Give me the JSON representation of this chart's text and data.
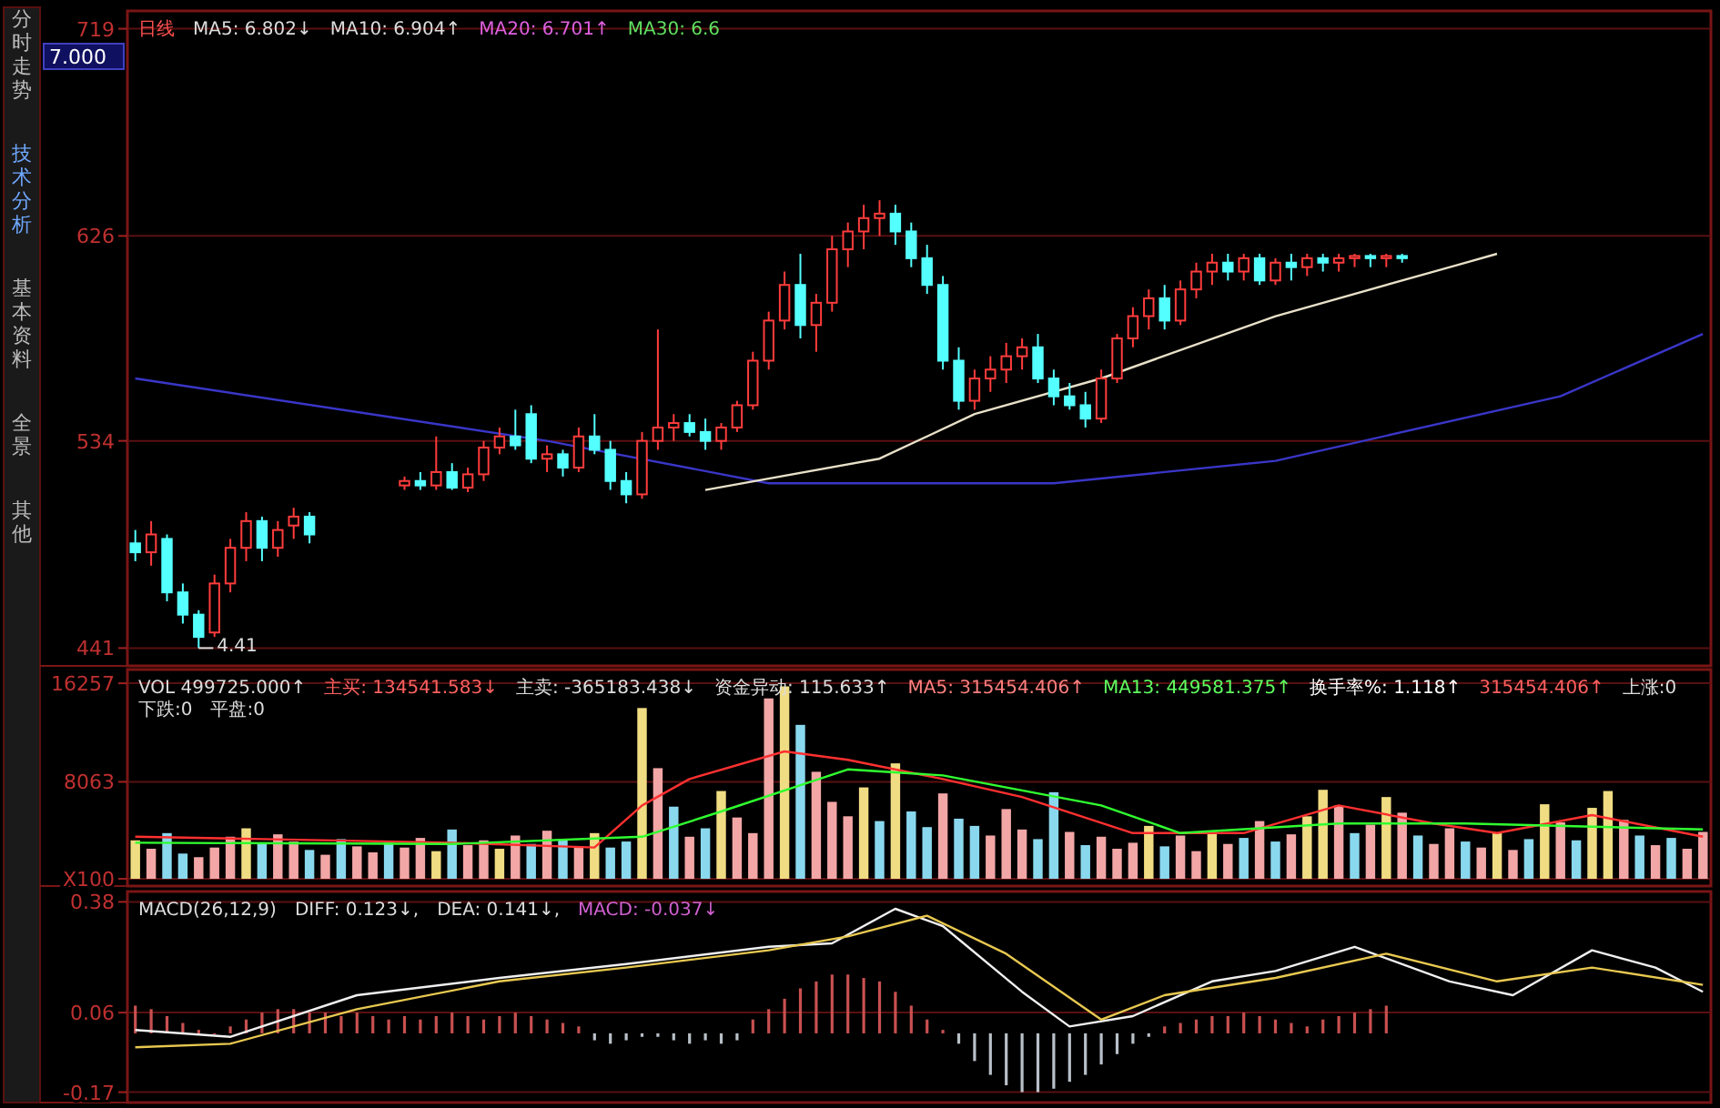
{
  "chart_data": [
    {
      "type": "candlestick",
      "title": "日线",
      "annotations": [
        "分时走势",
        "技术分析",
        "基本资料",
        "全景",
        "其他",
        "7.000",
        "MA5: 6.802↓",
        "MA10: 6.904↑",
        "MA20: 6.701↑",
        "MA30: 6.6",
        "4.41"
      ],
      "categories": [
        null,
        null,
        null,
        null,
        null,
        null,
        null,
        null,
        null,
        null,
        null,
        null,
        null,
        null,
        null,
        null,
        null,
        null,
        null,
        null,
        null,
        null,
        null,
        null,
        null,
        null,
        null,
        null,
        null,
        null,
        null,
        null,
        null,
        null,
        null,
        null,
        null,
        null,
        null,
        null,
        null,
        null,
        null,
        null,
        null,
        null,
        null,
        null,
        null,
        null,
        null,
        null,
        null,
        null,
        null,
        null,
        null,
        null,
        null,
        null,
        null,
        null,
        null,
        null,
        null,
        null,
        null,
        null,
        null,
        null,
        null,
        null,
        null,
        null,
        null,
        null,
        null,
        null,
        null,
        null,
        null,
        null,
        null,
        null,
        null,
        null,
        null,
        null,
        null,
        null,
        null,
        null,
        null,
        null,
        null,
        null,
        null,
        null,
        null,
        null
      ],
      "colors": [
        "#54ffff",
        "#ff3c3c",
        "#54ffff",
        "#54ffff",
        "#54ffff",
        "#ff3c3c",
        "#ff3c3c",
        "#ff3c3c",
        "#54ffff",
        "#ff3c3c",
        "#ff3c3c",
        "#54ffff",
        null,
        null,
        null,
        null,
        null,
        "#ff3c3c",
        "#54ffff",
        "#ff3c3c",
        "#54ffff",
        "#ff3c3c",
        "#ff3c3c",
        "#ff3c3c",
        "#54ffff",
        "#54ffff",
        "#ff3c3c",
        "#54ffff",
        "#ff3c3c",
        "#54ffff",
        "#54ffff",
        "#54ffff",
        "#ff3c3c",
        "#ff3c3c",
        "#ff3c3c",
        "#54ffff",
        "#54ffff",
        "#ff3c3c",
        "#ff3c3c",
        "#ff3c3c",
        "#ff3c3c",
        "#ff3c3c",
        "#54ffff",
        "#ff3c3c",
        "#ff3c3c",
        "#ff3c3c",
        "#ff3c3c",
        "#ff3c3c",
        "#54ffff",
        "#54ffff",
        "#54ffff",
        "#54ffff",
        "#54ffff",
        "#ff3c3c",
        "#ff3c3c",
        "#ff3c3c",
        "#ff3c3c",
        "#54ffff",
        "#54ffff",
        "#54ffff",
        "#54ffff",
        "#ff3c3c",
        "#ff3c3c",
        "#ff3c3c",
        "#ff3c3c",
        "#54ffff",
        "#ff3c3c",
        "#ff3c3c",
        "#ff3c3c",
        "#54ffff",
        "#ff3c3c",
        "#54ffff",
        "#ff3c3c",
        "#54ffff",
        "#ff3c3c",
        "#54ffff",
        "#ff3c3c",
        "#ff3c3c",
        "#54ffff",
        "#ff3c3c",
        "#54ffff",
        null,
        null,
        null,
        null,
        null,
        null,
        null,
        null,
        null,
        null,
        null,
        null,
        null,
        null,
        null,
        null,
        null,
        null,
        null
      ],
      "ohlc": [
        [
          488,
          494,
          480,
          484
        ],
        [
          484,
          498,
          478,
          492
        ],
        [
          490,
          492,
          462,
          466
        ],
        [
          466,
          470,
          452,
          456
        ],
        [
          456,
          458,
          441,
          446
        ],
        [
          448,
          474,
          446,
          470
        ],
        [
          470,
          490,
          466,
          486
        ],
        [
          486,
          502,
          480,
          498
        ],
        [
          498,
          500,
          480,
          486
        ],
        [
          486,
          498,
          482,
          494
        ],
        [
          496,
          504,
          490,
          500
        ],
        [
          500,
          502,
          488,
          492
        ],
        null,
        null,
        null,
        null,
        null,
        [
          514,
          518,
          512,
          516
        ],
        [
          516,
          520,
          512,
          514
        ],
        [
          514,
          536,
          512,
          520
        ],
        [
          520,
          524,
          512,
          513
        ],
        [
          513,
          522,
          511,
          519
        ],
        [
          519,
          534,
          516,
          531
        ],
        [
          531,
          540,
          528,
          536
        ],
        [
          536,
          548,
          530,
          532
        ],
        [
          546,
          550,
          524,
          526
        ],
        [
          526,
          532,
          520,
          528
        ],
        [
          528,
          530,
          518,
          522
        ],
        [
          522,
          540,
          520,
          536
        ],
        [
          536,
          546,
          528,
          530
        ],
        [
          530,
          534,
          512,
          516
        ],
        [
          516,
          520,
          506,
          510
        ],
        [
          510,
          538,
          508,
          534
        ],
        [
          534,
          584,
          530,
          540
        ],
        [
          540,
          546,
          534,
          542
        ],
        [
          542,
          546,
          536,
          538
        ],
        [
          538,
          544,
          530,
          534
        ],
        [
          534,
          542,
          530,
          540
        ],
        [
          540,
          552,
          538,
          550
        ],
        [
          550,
          574,
          548,
          570
        ],
        [
          570,
          592,
          566,
          588
        ],
        [
          588,
          610,
          584,
          604
        ],
        [
          604,
          618,
          580,
          586
        ],
        [
          586,
          600,
          574,
          596
        ],
        [
          596,
          626,
          592,
          620
        ],
        [
          620,
          632,
          612,
          628
        ],
        [
          628,
          640,
          620,
          634
        ],
        [
          634,
          642,
          626,
          636
        ],
        [
          636,
          640,
          622,
          628
        ],
        [
          628,
          632,
          612,
          616
        ],
        [
          616,
          622,
          600,
          604
        ],
        [
          604,
          608,
          566,
          570
        ],
        [
          570,
          576,
          548,
          552
        ],
        [
          552,
          566,
          548,
          562
        ],
        [
          562,
          572,
          556,
          566
        ],
        [
          566,
          578,
          560,
          572
        ],
        [
          572,
          580,
          566,
          576
        ],
        [
          576,
          582,
          560,
          562
        ],
        [
          562,
          566,
          550,
          554
        ],
        [
          554,
          560,
          548,
          550
        ],
        [
          550,
          556,
          540,
          544
        ],
        [
          544,
          566,
          542,
          562
        ],
        [
          562,
          582,
          560,
          580
        ],
        [
          580,
          594,
          576,
          590
        ],
        [
          590,
          602,
          584,
          598
        ],
        [
          598,
          604,
          584,
          588
        ],
        [
          588,
          606,
          586,
          602
        ],
        [
          602,
          614,
          598,
          610
        ],
        [
          610,
          618,
          604,
          614
        ],
        [
          614,
          618,
          606,
          610
        ],
        [
          610,
          618,
          606,
          616
        ],
        [
          616,
          618,
          604,
          606
        ],
        [
          606,
          616,
          604,
          614
        ],
        [
          614,
          618,
          606,
          612
        ],
        [
          612,
          618,
          608,
          616
        ],
        [
          616,
          618,
          610,
          614
        ],
        [
          614,
          618,
          610,
          616
        ],
        [
          616,
          618,
          612,
          617
        ],
        [
          617,
          618,
          612,
          616
        ],
        [
          616,
          618,
          612,
          617
        ],
        [
          617,
          618,
          614,
          616
        ],
        null,
        null,
        null,
        null,
        null,
        null,
        null,
        null,
        null,
        null,
        null,
        null,
        null,
        null,
        null,
        null,
        null,
        null,
        null
      ],
      "series": [
        {
          "type": "line",
          "color": "#3a36c8",
          "values": [
            562,
            null,
            null,
            null,
            null,
            null,
            null,
            null,
            null,
            null,
            null,
            null,
            null,
            null,
            null,
            null,
            null,
            null,
            null,
            null,
            null,
            null,
            null,
            null,
            null,
            null,
            534,
            null,
            null,
            null,
            null,
            null,
            null,
            null,
            null,
            null,
            null,
            null,
            null,
            null,
            515,
            null,
            null,
            null,
            null,
            null,
            null,
            null,
            null,
            null,
            null,
            null,
            null,
            null,
            null,
            null,
            null,
            null,
            515,
            null,
            null,
            null,
            null,
            null,
            null,
            null,
            null,
            null,
            null,
            null,
            null,
            null,
            525,
            null,
            null,
            null,
            null,
            null,
            null,
            null,
            null,
            null,
            null,
            null,
            null,
            null,
            null,
            null,
            null,
            null,
            554,
            null,
            null,
            null,
            null,
            null,
            null,
            null,
            null,
            582
          ]
        },
        {
          "type": "line",
          "color": "#e8e0c8",
          "values": [
            null,
            null,
            null,
            null,
            null,
            null,
            null,
            null,
            null,
            null,
            null,
            null,
            null,
            null,
            null,
            null,
            null,
            null,
            null,
            null,
            null,
            null,
            null,
            null,
            null,
            null,
            null,
            null,
            null,
            null,
            null,
            null,
            null,
            null,
            null,
            null,
            512,
            null,
            null,
            null,
            null,
            null,
            null,
            null,
            null,
            null,
            null,
            526,
            null,
            null,
            null,
            null,
            null,
            546,
            null,
            null,
            null,
            null,
            null,
            null,
            null,
            562,
            null,
            null,
            null,
            null,
            null,
            null,
            null,
            null,
            null,
            null,
            590,
            null,
            null,
            null,
            null,
            null,
            null,
            null,
            null,
            null,
            null,
            null,
            614,
            null,
            618,
            null,
            null,
            null,
            null,
            null,
            null,
            null,
            null,
            null,
            null,
            null,
            null,
            null
          ]
        }
      ],
      "ylim": [
        433,
        727
      ],
      "yticks": [
        441,
        534,
        626,
        719
      ],
      "grid": "y"
    },
    {
      "type": "bar",
      "annotations": [
        "VOL 499725.000↑",
        "主买: 134541.583↓",
        "主卖: -365183.438↓",
        "资金异动: 115.633↑",
        "MA5: 315454.406↑",
        "MA13: 449581.375↑",
        "换手率%: 1.118↑",
        "315454.406↑",
        "上涨:0",
        "下跌:0",
        "平盘:0"
      ],
      "categories": [
        null,
        null,
        null,
        null,
        null,
        null,
        null,
        null,
        null,
        null,
        null,
        null,
        null,
        null,
        null,
        null,
        null,
        null,
        null,
        null,
        null,
        null,
        null,
        null,
        null,
        null,
        null,
        null,
        null,
        null,
        null,
        null,
        null,
        null,
        null,
        null,
        null,
        null,
        null,
        null,
        null,
        null,
        null,
        null,
        null,
        null,
        null,
        null,
        null,
        null,
        null,
        null,
        null,
        null,
        null,
        null,
        null,
        null,
        null,
        null,
        null,
        null,
        null,
        null,
        null,
        null,
        null,
        null,
        null,
        null,
        null,
        null,
        null,
        null,
        null,
        null,
        null,
        null,
        null,
        null,
        null,
        null,
        null,
        null,
        null,
        null,
        null,
        null,
        null,
        null,
        null,
        null,
        null,
        null,
        null,
        null,
        null,
        null,
        null,
        null
      ],
      "series": [
        {
          "type": "bar",
          "values": [
            3200,
            2500,
            3800,
            2100,
            1800,
            2600,
            3500,
            4200,
            2900,
            3700,
            3100,
            2400,
            2000,
            3300,
            2700,
            2200,
            3000,
            2600,
            3400,
            2300,
            4100,
            2800,
            3200,
            2500,
            3600,
            2900,
            4000,
            3300,
            2700,
            3800,
            2600,
            3100,
            14200,
            9200,
            6000,
            3500,
            4200,
            7300,
            5100,
            3800,
            15000,
            16000,
            12800,
            8900,
            6400,
            5200,
            7600,
            4800,
            9600,
            5600,
            4300,
            7100,
            5000,
            4400,
            3600,
            5800,
            4100,
            3300,
            7200,
            3900,
            2800,
            3500,
            2500,
            3000,
            4400,
            2700,
            3600,
            2300,
            3900,
            2900,
            3400,
            4800,
            3100,
            3700,
            5200,
            7400,
            6100,
            3800,
            4500,
            6800,
            5500,
            3600,
            2900,
            4200,
            3100,
            2600,
            3800,
            2400,
            3300,
            6200,
            4700,
            3200,
            5900,
            7300,
            4900,
            3600,
            2800,
            3400,
            2500,
            3900
          ],
          "colors": [
            "#f0dc82",
            "#f2a6a6",
            "#8ad8ee",
            "#8ad8ee",
            "#f2a6a6",
            "#f2a6a6",
            "#f2a6a6",
            "#f0dc82",
            "#8ad8ee",
            "#f2a6a6",
            "#f2a6a6",
            "#8ad8ee",
            "#f2a6a6",
            "#8ad8ee",
            "#f2a6a6",
            "#f2a6a6",
            "#8ad8ee",
            "#f2a6a6",
            "#f2a6a6",
            "#f0dc82",
            "#8ad8ee",
            "#f2a6a6",
            "#f2a6a6",
            "#f0dc82",
            "#f2a6a6",
            "#8ad8ee",
            "#f2a6a6",
            "#8ad8ee",
            "#f2a6a6",
            "#f0dc82",
            "#8ad8ee",
            "#8ad8ee",
            "#f0dc82",
            "#f2a6a6",
            "#8ad8ee",
            "#f2a6a6",
            "#8ad8ee",
            "#f0dc82",
            "#f2a6a6",
            "#f2a6a6",
            "#f2a6a6",
            "#f0dc82",
            "#8ad8ee",
            "#f2a6a6",
            "#f2a6a6",
            "#f2a6a6",
            "#f0dc82",
            "#8ad8ee",
            "#f0dc82",
            "#8ad8ee",
            "#8ad8ee",
            "#f2a6a6",
            "#8ad8ee",
            "#8ad8ee",
            "#f2a6a6",
            "#f2a6a6",
            "#f2a6a6",
            "#8ad8ee",
            "#8ad8ee",
            "#f2a6a6",
            "#8ad8ee",
            "#f2a6a6",
            "#f2a6a6",
            "#f2a6a6",
            "#f0dc82",
            "#8ad8ee",
            "#f2a6a6",
            "#f2a6a6",
            "#f0dc82",
            "#f2a6a6",
            "#8ad8ee",
            "#f2a6a6",
            "#8ad8ee",
            "#f2a6a6",
            "#f0dc82",
            "#f0dc82",
            "#f2a6a6",
            "#8ad8ee",
            "#f2a6a6",
            "#f0dc82",
            "#f2a6a6",
            "#8ad8ee",
            "#f2a6a6",
            "#f2a6a6",
            "#8ad8ee",
            "#f2a6a6",
            "#f0dc82",
            "#f2a6a6",
            "#8ad8ee",
            "#f0dc82",
            "#f2a6a6",
            "#8ad8ee",
            "#f0dc82",
            "#f0dc82",
            "#f2a6a6",
            "#8ad8ee",
            "#f2a6a6",
            "#8ad8ee",
            "#f2a6a6",
            "#f2a6a6"
          ]
        },
        {
          "type": "line",
          "color": "#ff3030",
          "values": [
            3500,
            null,
            null,
            null,
            null,
            null,
            null,
            null,
            3300,
            null,
            null,
            null,
            null,
            null,
            null,
            null,
            null,
            null,
            null,
            null,
            3000,
            null,
            null,
            null,
            null,
            null,
            null,
            null,
            null,
            2600,
            null,
            null,
            6100,
            null,
            null,
            8300,
            null,
            null,
            null,
            null,
            null,
            10600,
            null,
            null,
            null,
            9900,
            null,
            null,
            null,
            null,
            null,
            8300,
            null,
            null,
            null,
            null,
            6800,
            null,
            null,
            null,
            null,
            null,
            null,
            3800,
            null,
            null,
            null,
            null,
            null,
            null,
            3800,
            null,
            null,
            null,
            null,
            null,
            6100,
            null,
            null,
            null,
            null,
            null,
            4600,
            null,
            null,
            null,
            3800,
            null,
            null,
            null,
            null,
            null,
            5300,
            null,
            null,
            null,
            null,
            null,
            null,
            3500
          ]
        },
        {
          "type": "line",
          "color": "#30ff30",
          "values": [
            3000,
            null,
            null,
            null,
            null,
            null,
            null,
            null,
            null,
            null,
            null,
            null,
            null,
            null,
            null,
            null,
            null,
            null,
            null,
            null,
            2900,
            null,
            null,
            null,
            null,
            null,
            null,
            null,
            null,
            null,
            null,
            null,
            3500,
            null,
            null,
            null,
            null,
            5600,
            null,
            null,
            null,
            null,
            null,
            null,
            null,
            9100,
            null,
            null,
            null,
            null,
            null,
            8600,
            null,
            null,
            null,
            null,
            null,
            null,
            null,
            null,
            null,
            6100,
            null,
            null,
            null,
            null,
            3800,
            null,
            null,
            null,
            null,
            null,
            null,
            null,
            null,
            null,
            4600,
            null,
            null,
            null,
            null,
            null,
            null,
            null,
            4600,
            null,
            null,
            null,
            null,
            null,
            null,
            null,
            null,
            null,
            null,
            null,
            null,
            null,
            null,
            4100
          ]
        }
      ],
      "ylim": [
        -600,
        17400
      ],
      "yticks": [
        {
          "value": 0,
          "label": "X100"
        },
        8063,
        16257
      ],
      "grid": "y"
    },
    {
      "type": "bar",
      "annotations": [
        "MACD(26,12,9)",
        "DIFF: 0.123↓,",
        "DEA: 0.141↓,",
        "MACD: -0.037↓"
      ],
      "categories": [
        null,
        null,
        null,
        null,
        null,
        null,
        null,
        null,
        null,
        null,
        null,
        null,
        null,
        null,
        null,
        null,
        null,
        null,
        null,
        null,
        null,
        null,
        null,
        null,
        null,
        null,
        null,
        null,
        null,
        null,
        null,
        null,
        null,
        null,
        null,
        null,
        null,
        null,
        null,
        null,
        null,
        null,
        null,
        null,
        null,
        null,
        null,
        null,
        null,
        null,
        null,
        null,
        null,
        null,
        null,
        null,
        null,
        null,
        null,
        null,
        null,
        null,
        null,
        null,
        null,
        null,
        null,
        null,
        null,
        null,
        null,
        null,
        null,
        null,
        null,
        null,
        null,
        null,
        null,
        null,
        null,
        null,
        null,
        null,
        null,
        null,
        null,
        null,
        null,
        null,
        null,
        null,
        null,
        null,
        null,
        null,
        null,
        null,
        null,
        null
      ],
      "series": [
        {
          "type": "bar",
          "values": [
            0.08,
            0.07,
            0.05,
            0.03,
            0.01,
            0.0,
            0.02,
            0.04,
            0.06,
            0.07,
            0.07,
            0.06,
            0.06,
            0.05,
            0.06,
            0.05,
            0.04,
            0.05,
            0.04,
            0.05,
            0.06,
            0.05,
            0.04,
            0.05,
            0.06,
            0.05,
            0.04,
            0.03,
            0.02,
            -0.02,
            -0.03,
            -0.02,
            -0.01,
            -0.01,
            -0.02,
            -0.03,
            -0.02,
            -0.03,
            -0.02,
            0.04,
            0.07,
            0.1,
            0.13,
            0.15,
            0.17,
            0.17,
            0.16,
            0.15,
            0.12,
            0.08,
            0.04,
            0.01,
            -0.03,
            -0.08,
            -0.12,
            -0.15,
            -0.17,
            -0.17,
            -0.16,
            -0.14,
            -0.12,
            -0.09,
            -0.06,
            -0.03,
            -0.01,
            0.02,
            0.03,
            0.04,
            0.05,
            0.05,
            0.06,
            0.05,
            0.04,
            0.03,
            0.02,
            0.04,
            0.05,
            0.06,
            0.07,
            0.08,
            null,
            null,
            null,
            null,
            null,
            null,
            null,
            null,
            null,
            null,
            null,
            null,
            null,
            null,
            null,
            null,
            null,
            null,
            null,
            null
          ],
          "colors": [
            "#c85050",
            "#c85050",
            "#c85050",
            "#c85050",
            "#c85050",
            "#c85050",
            "#c85050",
            "#c85050",
            "#c85050",
            "#c85050",
            "#c85050",
            "#c85050",
            "#c85050",
            "#c85050",
            "#c85050",
            "#c85050",
            "#c85050",
            "#c85050",
            "#c85050",
            "#c85050",
            "#c85050",
            "#c85050",
            "#c85050",
            "#c85050",
            "#c85050",
            "#c85050",
            "#c85050",
            "#c85050",
            "#c85050",
            "#b8c0c8",
            "#b8c0c8",
            "#b8c0c8",
            "#b8c0c8",
            "#b8c0c8",
            "#b8c0c8",
            "#b8c0c8",
            "#b8c0c8",
            "#b8c0c8",
            "#b8c0c8",
            "#c85050",
            "#c85050",
            "#c85050",
            "#c85050",
            "#c85050",
            "#c85050",
            "#c85050",
            "#c85050",
            "#c85050",
            "#c85050",
            "#c85050",
            "#c85050",
            "#c85050",
            "#b8c0c8",
            "#b8c0c8",
            "#b8c0c8",
            "#b8c0c8",
            "#b8c0c8",
            "#b8c0c8",
            "#b8c0c8",
            "#b8c0c8",
            "#b8c0c8",
            "#b8c0c8",
            "#b8c0c8",
            "#b8c0c8",
            "#b8c0c8",
            "#c85050",
            "#c85050",
            "#c85050",
            "#c85050",
            "#c85050",
            "#c85050",
            "#c85050",
            "#c85050",
            "#c85050",
            "#c85050",
            "#c85050",
            "#c85050",
            "#c85050",
            "#c85050",
            "#c85050",
            null,
            null,
            null,
            null,
            null,
            null,
            null,
            null,
            null,
            null,
            null,
            null,
            null,
            null,
            null,
            null,
            null,
            null,
            null,
            null
          ]
        },
        {
          "type": "line",
          "color": "#f0f0f0",
          "values": [
            0.01,
            null,
            null,
            null,
            null,
            null,
            -0.01,
            null,
            null,
            null,
            null,
            null,
            null,
            null,
            0.11,
            null,
            null,
            null,
            null,
            null,
            null,
            null,
            null,
            0.16,
            null,
            null,
            null,
            null,
            null,
            null,
            null,
            0.2,
            null,
            null,
            null,
            null,
            null,
            null,
            null,
            null,
            0.25,
            null,
            null,
            null,
            0.26,
            null,
            null,
            null,
            0.36,
            null,
            null,
            0.31,
            null,
            null,
            null,
            null,
            0.12,
            null,
            null,
            0.02,
            null,
            null,
            null,
            0.05,
            null,
            null,
            null,
            null,
            0.15,
            null,
            null,
            null,
            0.18,
            null,
            null,
            null,
            null,
            0.25,
            null,
            null,
            null,
            null,
            null,
            0.15,
            null,
            null,
            null,
            0.11,
            null,
            null,
            null,
            null,
            0.24,
            null,
            null,
            null,
            0.19,
            null,
            null,
            0.12
          ]
        },
        {
          "type": "line",
          "color": "#e8c850",
          "values": [
            -0.04,
            null,
            null,
            null,
            null,
            null,
            -0.03,
            null,
            null,
            null,
            null,
            null,
            null,
            null,
            0.07,
            null,
            null,
            null,
            null,
            null,
            null,
            null,
            null,
            0.15,
            null,
            null,
            null,
            null,
            null,
            null,
            null,
            0.19,
            null,
            null,
            null,
            null,
            null,
            null,
            null,
            null,
            0.24,
            null,
            null,
            null,
            null,
            0.28,
            null,
            null,
            null,
            null,
            0.34,
            null,
            null,
            null,
            null,
            0.23,
            null,
            null,
            null,
            null,
            null,
            0.04,
            null,
            null,
            null,
            0.11,
            null,
            null,
            null,
            null,
            null,
            null,
            0.16,
            null,
            null,
            null,
            null,
            null,
            null,
            0.23,
            null,
            null,
            null,
            null,
            null,
            null,
            0.15,
            null,
            null,
            null,
            null,
            null,
            0.19,
            null,
            null,
            null,
            null,
            null,
            null,
            0.14
          ]
        }
      ],
      "ylim": [
        -0.2,
        0.41
      ],
      "yticks": [
        -0.17,
        0.06,
        0.38
      ],
      "grid": "y"
    }
  ]
}
